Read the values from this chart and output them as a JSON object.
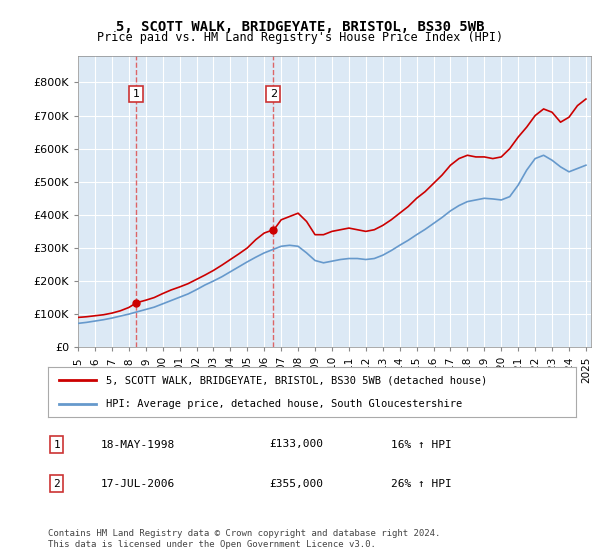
{
  "title1": "5, SCOTT WALK, BRIDGEYATE, BRISTOL, BS30 5WB",
  "title2": "Price paid vs. HM Land Registry's House Price Index (HPI)",
  "legend_line1": "5, SCOTT WALK, BRIDGEYATE, BRISTOL, BS30 5WB (detached house)",
  "legend_line2": "HPI: Average price, detached house, South Gloucestershire",
  "footnote": "Contains HM Land Registry data © Crown copyright and database right 2024.\nThis data is licensed under the Open Government Licence v3.0.",
  "transaction1_label": "1",
  "transaction1_date": "18-MAY-1998",
  "transaction1_price": "£133,000",
  "transaction1_hpi": "16% ↑ HPI",
  "transaction2_label": "2",
  "transaction2_date": "17-JUL-2006",
  "transaction2_price": "£355,000",
  "transaction2_hpi": "26% ↑ HPI",
  "red_color": "#cc0000",
  "blue_color": "#6699cc",
  "dashed_red": "#dd4444",
  "bg_color": "#dce9f5",
  "marker_box_color": "#cc3333",
  "xlim_left": 1995.0,
  "xlim_right": 2025.3,
  "ylim_bottom": 0,
  "ylim_top": 880000,
  "yticks": [
    0,
    100000,
    200000,
    300000,
    400000,
    500000,
    600000,
    700000,
    800000
  ],
  "ytick_labels": [
    "£0",
    "£100K",
    "£200K",
    "£300K",
    "£400K",
    "£500K",
    "£600K",
    "£700K",
    "£800K"
  ],
  "xticks": [
    1995,
    1996,
    1997,
    1998,
    1999,
    2000,
    2001,
    2002,
    2003,
    2004,
    2005,
    2006,
    2007,
    2008,
    2009,
    2010,
    2011,
    2012,
    2013,
    2014,
    2015,
    2016,
    2017,
    2018,
    2019,
    2020,
    2021,
    2022,
    2023,
    2024,
    2025
  ],
  "red_x": [
    1995.0,
    1995.5,
    1996.0,
    1996.5,
    1997.0,
    1997.5,
    1998.0,
    1998.416,
    1998.5,
    1999.0,
    1999.5,
    2000.0,
    2000.5,
    2001.0,
    2001.5,
    2002.0,
    2002.5,
    2003.0,
    2003.5,
    2004.0,
    2004.5,
    2005.0,
    2005.5,
    2006.0,
    2006.54,
    2006.6,
    2007.0,
    2007.5,
    2008.0,
    2008.5,
    2009.0,
    2009.5,
    2010.0,
    2010.5,
    2011.0,
    2011.5,
    2012.0,
    2012.5,
    2013.0,
    2013.5,
    2014.0,
    2014.5,
    2015.0,
    2015.5,
    2016.0,
    2016.5,
    2017.0,
    2017.5,
    2018.0,
    2018.5,
    2019.0,
    2019.5,
    2020.0,
    2020.5,
    2021.0,
    2021.5,
    2022.0,
    2022.5,
    2023.0,
    2023.5,
    2024.0,
    2024.5,
    2025.0
  ],
  "red_y": [
    90000,
    92000,
    95000,
    98000,
    103000,
    110000,
    120000,
    133000,
    135000,
    142000,
    150000,
    162000,
    173000,
    182000,
    192000,
    205000,
    218000,
    232000,
    248000,
    265000,
    282000,
    300000,
    325000,
    345000,
    355000,
    357000,
    385000,
    395000,
    405000,
    380000,
    340000,
    340000,
    350000,
    355000,
    360000,
    355000,
    350000,
    355000,
    368000,
    385000,
    405000,
    425000,
    450000,
    470000,
    495000,
    520000,
    550000,
    570000,
    580000,
    575000,
    575000,
    570000,
    575000,
    600000,
    635000,
    665000,
    700000,
    720000,
    710000,
    680000,
    695000,
    730000,
    750000
  ],
  "blue_x": [
    1995.0,
    1995.5,
    1996.0,
    1996.5,
    1997.0,
    1997.5,
    1998.0,
    1998.5,
    1999.0,
    1999.5,
    2000.0,
    2000.5,
    2001.0,
    2001.5,
    2002.0,
    2002.5,
    2003.0,
    2003.5,
    2004.0,
    2004.5,
    2005.0,
    2005.5,
    2006.0,
    2006.5,
    2007.0,
    2007.5,
    2008.0,
    2008.5,
    2009.0,
    2009.5,
    2010.0,
    2010.5,
    2011.0,
    2011.5,
    2012.0,
    2012.5,
    2013.0,
    2013.5,
    2014.0,
    2014.5,
    2015.0,
    2015.5,
    2016.0,
    2016.5,
    2017.0,
    2017.5,
    2018.0,
    2018.5,
    2019.0,
    2019.5,
    2020.0,
    2020.5,
    2021.0,
    2021.5,
    2022.0,
    2022.5,
    2023.0,
    2023.5,
    2024.0,
    2024.5,
    2025.0
  ],
  "blue_y": [
    72000,
    75000,
    79000,
    83000,
    88000,
    94000,
    100000,
    107000,
    114000,
    121000,
    131000,
    141000,
    151000,
    161000,
    174000,
    188000,
    200000,
    213000,
    228000,
    243000,
    258000,
    272000,
    285000,
    295000,
    305000,
    308000,
    305000,
    285000,
    262000,
    255000,
    260000,
    265000,
    268000,
    268000,
    265000,
    268000,
    278000,
    292000,
    308000,
    323000,
    340000,
    356000,
    374000,
    392000,
    412000,
    428000,
    440000,
    445000,
    450000,
    448000,
    445000,
    455000,
    490000,
    535000,
    570000,
    580000,
    565000,
    545000,
    530000,
    540000,
    550000
  ],
  "transaction1_x": 1998.416,
  "transaction1_y": 133000,
  "transaction2_x": 2006.54,
  "transaction2_y": 355000
}
